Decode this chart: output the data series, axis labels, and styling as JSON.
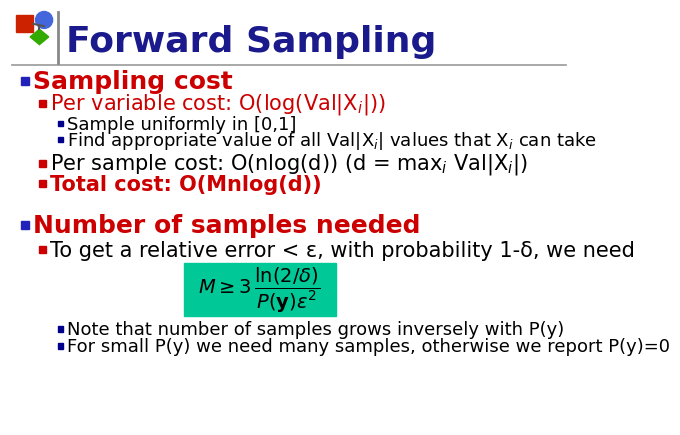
{
  "title": "Forward Sampling",
  "title_color": "#1a1a8c",
  "bg_color": "#ffffff",
  "header_line_color": "#999999",
  "bullet_blue": "#2222bb",
  "bullet_red": "#cc0000",
  "bullet_navy": "#00008b",
  "section1_header": "Sampling cost",
  "section1_header_color": "#cc0000",
  "section2_header": "Number of samples needed",
  "section2_header_color": "#cc0000",
  "formula_box_color": "#00c896",
  "to_get_text": "To get a relative error < ε, with probability 1-δ, we need",
  "sub_line1": "Note that number of samples grows inversely with P(y)",
  "sub_line2": "For small P(y) we need many samples, otherwise we report P(y)=0",
  "icon": {
    "square_color": "#cc2200",
    "circle_color": "#4466dd",
    "diamond_color": "#33aa00",
    "connector_color": "#555555"
  }
}
